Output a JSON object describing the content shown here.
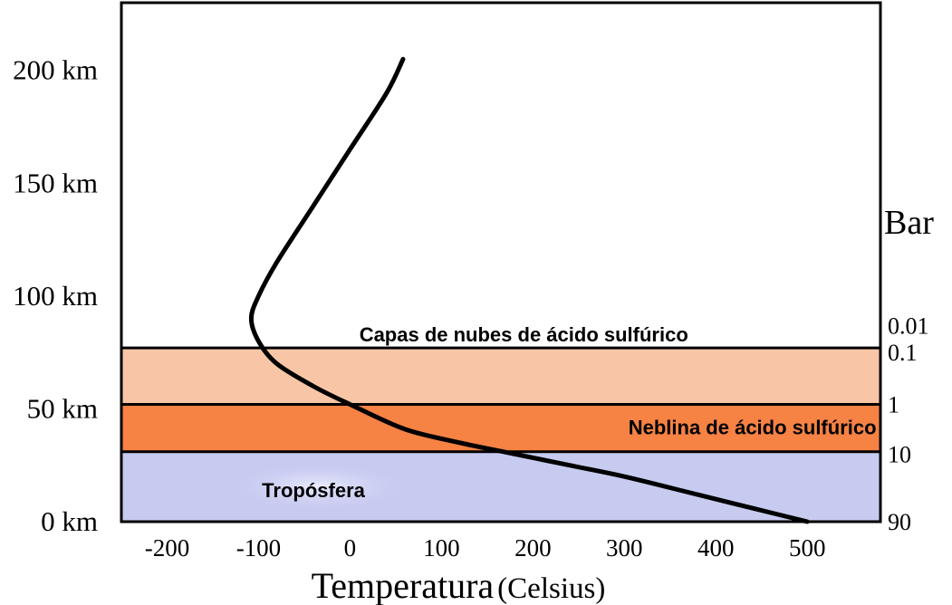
{
  "chart_data": {
    "type": "line",
    "title": "",
    "xlabel": "Temperatura",
    "xlabel_unit": "(Celsius)",
    "ylabel": "",
    "right_axis_title": "Bar",
    "xlim": [
      -250,
      580
    ],
    "ylim": [
      0,
      230
    ],
    "x_ticks": [
      {
        "value": -200,
        "label": "-200"
      },
      {
        "value": -100,
        "label": "-100"
      },
      {
        "value": 0,
        "label": "0"
      },
      {
        "value": 100,
        "label": "100"
      },
      {
        "value": 200,
        "label": "200"
      },
      {
        "value": 300,
        "label": "300"
      },
      {
        "value": 400,
        "label": "400"
      },
      {
        "value": 500,
        "label": "500"
      }
    ],
    "y_ticks": [
      {
        "value": 0,
        "label": "0 km"
      },
      {
        "value": 50,
        "label": "50 km"
      },
      {
        "value": 100,
        "label": "100 km"
      },
      {
        "value": 150,
        "label": "150 km"
      },
      {
        "value": 200,
        "label": "200 km"
      }
    ],
    "pressure_ticks": [
      {
        "km": 0,
        "label": "90"
      },
      {
        "km": 30,
        "label": "10"
      },
      {
        "km": 52,
        "label": "1"
      },
      {
        "km": 75,
        "label": "0.1"
      },
      {
        "km": 87,
        "label": "0.01"
      }
    ],
    "layers": [
      {
        "name": "Tropósfera",
        "from_km": 0,
        "to_km": 31,
        "color": "#c8cbf0"
      },
      {
        "name": "Neblina de ácido sulfúrico",
        "from_km": 31,
        "to_km": 52,
        "color": "#f68244"
      },
      {
        "name": "",
        "from_km": 52,
        "to_km": 77,
        "color": "#f8c6a6"
      }
    ],
    "annotations": [
      {
        "text": "Capas de nubes de ácido sulfúrico",
        "x": 190,
        "y": 83
      },
      {
        "text": "Neblina de ácido sulfúrico",
        "x": 440,
        "y": 42
      },
      {
        "text": "Tropósfera",
        "x": -40,
        "y": 14
      }
    ],
    "series": [
      {
        "x": [
          500,
          440,
          380,
          300,
          240,
          180,
          120,
          60,
          0,
          -40,
          -80,
          -100,
          -108,
          -100,
          -80,
          -40,
          0,
          40,
          58
        ],
        "y": [
          0,
          6,
          12,
          20,
          25,
          30,
          35,
          41,
          52,
          60,
          70,
          80,
          90,
          100,
          115,
          140,
          165,
          190,
          205
        ],
        "color": "#000000"
      }
    ],
    "grid": false,
    "colors": {
      "frame": "#000000",
      "curve": "#000000",
      "troposphere_glow": "#dde0fa"
    }
  }
}
